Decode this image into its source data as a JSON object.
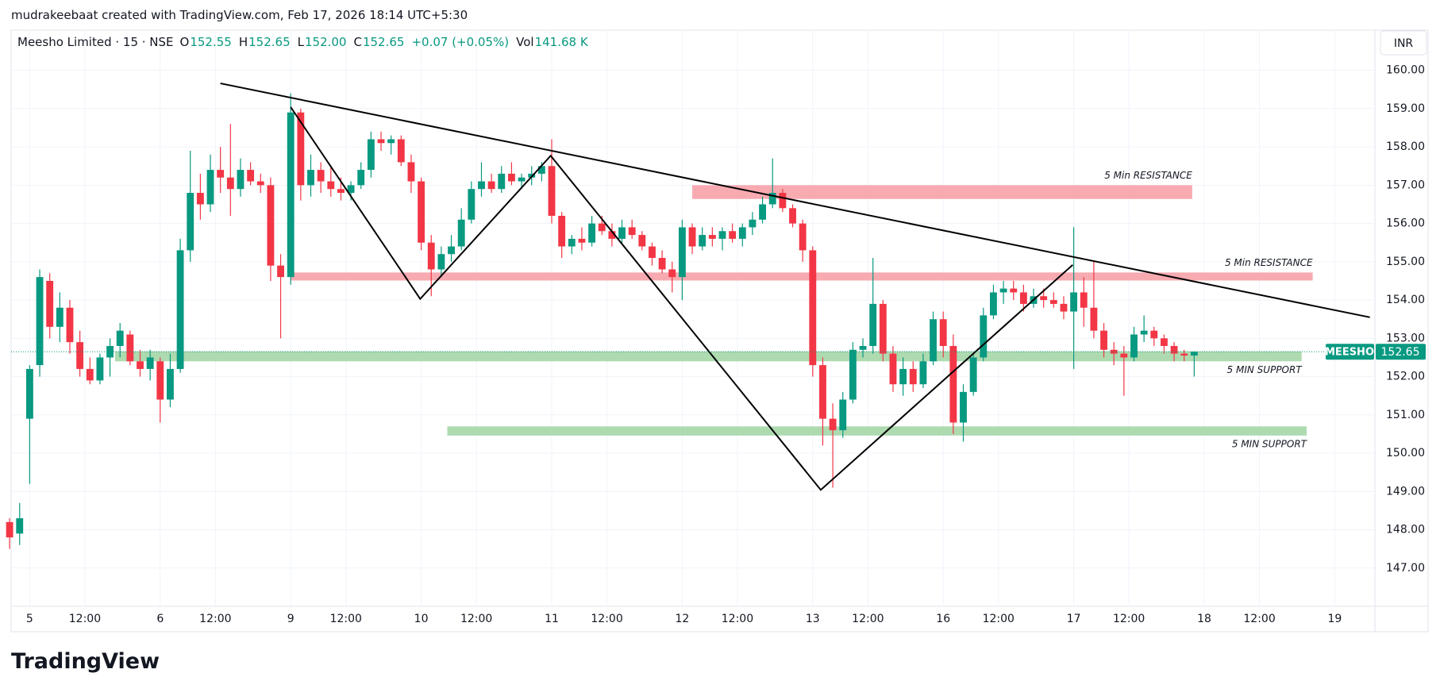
{
  "header": {
    "watermark": "mudrakeebaat created with TradingView.com, Feb 17, 2026 18:14 UTC+5:30",
    "legend": {
      "name": "Meesho Limited · 15 · NSE",
      "fields": [
        {
          "key": "O",
          "value": "152.55"
        },
        {
          "key": "H",
          "value": "152.65"
        },
        {
          "key": "L",
          "value": "152.00"
        },
        {
          "key": "C",
          "value": "152.65"
        }
      ],
      "change": "+0.07 (+0.05%)",
      "volume": {
        "key": "Vol",
        "value": "141.68 K"
      }
    },
    "currency": "INR",
    "logo": "TradingView"
  },
  "chart_data": {
    "type": "candlestick",
    "symbol": "MEESHO",
    "last_price": 152.65,
    "up_color": "#089981",
    "down_color": "#f23645",
    "grid": true,
    "xlim": [
      0.15,
      136
    ],
    "ylim": [
      146.0,
      161.05
    ],
    "yticks": [
      {
        "value": 147,
        "label": "147.00"
      },
      {
        "value": 148,
        "label": "148.00"
      },
      {
        "value": 149,
        "label": "149.00"
      },
      {
        "value": 150,
        "label": "150.00"
      },
      {
        "value": 151,
        "label": "151.00"
      },
      {
        "value": 152,
        "label": "152.00"
      },
      {
        "value": 153,
        "label": "153.00"
      },
      {
        "value": 154,
        "label": "154.00"
      },
      {
        "value": 155,
        "label": "155.00"
      },
      {
        "value": 156,
        "label": "156.00"
      },
      {
        "value": 157,
        "label": "157.00"
      },
      {
        "value": 158,
        "label": "158.00"
      },
      {
        "value": 159,
        "label": "159.00"
      },
      {
        "value": 160,
        "label": "160.00"
      }
    ],
    "xticks": [
      {
        "value": 2,
        "label": "5"
      },
      {
        "value": 7.5,
        "label": "12:00"
      },
      {
        "value": 15,
        "label": "6"
      },
      {
        "value": 20.5,
        "label": "12:00"
      },
      {
        "value": 28,
        "label": "9"
      },
      {
        "value": 33.5,
        "label": "12:00"
      },
      {
        "value": 41,
        "label": "10"
      },
      {
        "value": 46.5,
        "label": "12:00"
      },
      {
        "value": 54,
        "label": "11"
      },
      {
        "value": 59.5,
        "label": "12:00"
      },
      {
        "value": 67,
        "label": "12"
      },
      {
        "value": 72.5,
        "label": "12:00"
      },
      {
        "value": 80,
        "label": "13"
      },
      {
        "value": 85.5,
        "label": "12:00"
      },
      {
        "value": 93,
        "label": "16"
      },
      {
        "value": 98.5,
        "label": "12:00"
      },
      {
        "value": 106,
        "label": "17"
      },
      {
        "value": 111.5,
        "label": "12:00"
      },
      {
        "value": 119,
        "label": "18"
      },
      {
        "value": 124.5,
        "label": "12:00"
      },
      {
        "value": 132,
        "label": "19"
      }
    ],
    "ohlc": [
      [
        148.2,
        148.3,
        147.5,
        147.8
      ],
      [
        147.9,
        148.7,
        147.6,
        148.3
      ],
      [
        150.9,
        152.3,
        149.2,
        152.2
      ],
      [
        152.3,
        154.8,
        152.0,
        154.6
      ],
      [
        154.5,
        154.7,
        153.0,
        153.3
      ],
      [
        153.3,
        154.2,
        152.9,
        153.8
      ],
      [
        153.8,
        154.0,
        152.6,
        152.9
      ],
      [
        152.9,
        153.2,
        152.0,
        152.2
      ],
      [
        152.2,
        152.5,
        151.8,
        151.9
      ],
      [
        151.9,
        152.6,
        151.8,
        152.5
      ],
      [
        152.5,
        153.0,
        152.0,
        152.8
      ],
      [
        152.8,
        153.4,
        152.5,
        153.2
      ],
      [
        153.1,
        153.2,
        152.3,
        152.4
      ],
      [
        152.4,
        152.7,
        152.0,
        152.2
      ],
      [
        152.2,
        152.7,
        151.9,
        152.5
      ],
      [
        152.4,
        152.5,
        150.8,
        151.4
      ],
      [
        151.4,
        152.6,
        151.2,
        152.2
      ],
      [
        152.2,
        155.6,
        152.1,
        155.3
      ],
      [
        155.3,
        157.9,
        155.0,
        156.8
      ],
      [
        156.8,
        157.3,
        156.1,
        156.5
      ],
      [
        156.5,
        157.8,
        156.3,
        157.4
      ],
      [
        157.4,
        158.0,
        156.8,
        157.2
      ],
      [
        157.2,
        158.6,
        156.2,
        156.9
      ],
      [
        156.9,
        157.7,
        156.7,
        157.4
      ],
      [
        157.4,
        157.6,
        157.0,
        157.1
      ],
      [
        157.1,
        157.3,
        156.8,
        157.0
      ],
      [
        157.0,
        157.2,
        154.5,
        154.9
      ],
      [
        154.9,
        155.2,
        153.0,
        154.6
      ],
      [
        154.6,
        159.4,
        154.4,
        158.9
      ],
      [
        158.9,
        159.0,
        156.6,
        157.0
      ],
      [
        157.0,
        157.8,
        156.7,
        157.4
      ],
      [
        157.4,
        157.6,
        156.8,
        157.1
      ],
      [
        157.1,
        157.5,
        156.7,
        156.9
      ],
      [
        156.9,
        157.2,
        156.6,
        156.8
      ],
      [
        156.8,
        157.1,
        156.6,
        157.0
      ],
      [
        157.0,
        157.6,
        156.9,
        157.4
      ],
      [
        157.4,
        158.4,
        157.2,
        158.2
      ],
      [
        158.2,
        158.4,
        157.9,
        158.1
      ],
      [
        158.1,
        158.3,
        157.8,
        158.2
      ],
      [
        158.2,
        158.3,
        157.5,
        157.6
      ],
      [
        157.6,
        157.8,
        156.8,
        157.1
      ],
      [
        157.1,
        157.2,
        155.3,
        155.5
      ],
      [
        155.5,
        155.7,
        154.1,
        154.8
      ],
      [
        154.8,
        155.4,
        154.6,
        155.2
      ],
      [
        155.2,
        155.7,
        155.0,
        155.4
      ],
      [
        155.4,
        156.4,
        155.3,
        156.1
      ],
      [
        156.1,
        157.1,
        156.0,
        156.9
      ],
      [
        156.9,
        157.6,
        156.7,
        157.1
      ],
      [
        157.1,
        157.3,
        156.8,
        156.9
      ],
      [
        156.9,
        157.5,
        156.8,
        157.3
      ],
      [
        157.3,
        157.6,
        157.0,
        157.1
      ],
      [
        157.1,
        157.3,
        156.9,
        157.2
      ],
      [
        157.2,
        157.5,
        157.0,
        157.3
      ],
      [
        157.3,
        157.6,
        157.1,
        157.5
      ],
      [
        157.5,
        158.2,
        156.0,
        156.2
      ],
      [
        156.2,
        156.3,
        155.1,
        155.4
      ],
      [
        155.4,
        155.7,
        155.2,
        155.6
      ],
      [
        155.6,
        155.9,
        155.3,
        155.5
      ],
      [
        155.5,
        156.2,
        155.4,
        156.0
      ],
      [
        156.0,
        156.2,
        155.7,
        155.8
      ],
      [
        155.8,
        156.0,
        155.4,
        155.6
      ],
      [
        155.6,
        156.1,
        155.5,
        155.9
      ],
      [
        155.9,
        156.1,
        155.6,
        155.7
      ],
      [
        155.7,
        155.8,
        155.3,
        155.4
      ],
      [
        155.4,
        155.5,
        154.9,
        155.1
      ],
      [
        155.1,
        155.3,
        154.7,
        154.8
      ],
      [
        154.8,
        155.0,
        154.2,
        154.6
      ],
      [
        154.6,
        156.1,
        154.0,
        155.9
      ],
      [
        155.9,
        156.0,
        155.2,
        155.4
      ],
      [
        155.4,
        155.9,
        155.3,
        155.7
      ],
      [
        155.7,
        155.9,
        155.4,
        155.6
      ],
      [
        155.6,
        155.9,
        155.3,
        155.8
      ],
      [
        155.8,
        156.0,
        155.5,
        155.6
      ],
      [
        155.6,
        156.0,
        155.4,
        155.9
      ],
      [
        155.9,
        156.3,
        155.7,
        156.1
      ],
      [
        156.1,
        156.7,
        156.0,
        156.5
      ],
      [
        156.5,
        157.7,
        156.4,
        156.8
      ],
      [
        156.8,
        156.9,
        156.3,
        156.4
      ],
      [
        156.4,
        156.5,
        155.9,
        156.0
      ],
      [
        156.0,
        156.1,
        155.0,
        155.3
      ],
      [
        155.3,
        155.4,
        152.0,
        152.3
      ],
      [
        152.3,
        152.5,
        150.2,
        150.9
      ],
      [
        150.9,
        151.3,
        149.1,
        150.6
      ],
      [
        150.6,
        151.6,
        150.4,
        151.4
      ],
      [
        151.4,
        152.9,
        151.3,
        152.7
      ],
      [
        152.7,
        153.0,
        152.5,
        152.8
      ],
      [
        152.8,
        155.1,
        152.6,
        153.9
      ],
      [
        153.9,
        154.0,
        152.4,
        152.6
      ],
      [
        152.6,
        152.8,
        151.6,
        151.8
      ],
      [
        151.8,
        152.5,
        151.5,
        152.2
      ],
      [
        152.2,
        152.4,
        151.6,
        151.8
      ],
      [
        151.8,
        152.6,
        151.7,
        152.4
      ],
      [
        152.4,
        153.7,
        152.3,
        153.5
      ],
      [
        153.5,
        153.7,
        152.5,
        152.8
      ],
      [
        152.8,
        153.1,
        150.5,
        150.8
      ],
      [
        150.8,
        151.8,
        150.3,
        151.6
      ],
      [
        151.6,
        152.6,
        151.5,
        152.5
      ],
      [
        152.5,
        153.8,
        152.4,
        153.6
      ],
      [
        153.6,
        154.4,
        153.5,
        154.2
      ],
      [
        154.2,
        154.5,
        153.9,
        154.3
      ],
      [
        154.3,
        154.5,
        154.0,
        154.2
      ],
      [
        154.2,
        154.4,
        153.7,
        153.9
      ],
      [
        153.9,
        154.3,
        153.8,
        154.1
      ],
      [
        154.1,
        154.3,
        153.8,
        154.0
      ],
      [
        154.0,
        154.2,
        153.8,
        153.9
      ],
      [
        153.9,
        154.1,
        153.5,
        153.7
      ],
      [
        153.7,
        155.9,
        152.2,
        154.2
      ],
      [
        154.2,
        154.6,
        153.3,
        153.8
      ],
      [
        153.8,
        155.0,
        153.0,
        153.2
      ],
      [
        153.2,
        153.4,
        152.5,
        152.7
      ],
      [
        152.7,
        152.9,
        152.3,
        152.6
      ],
      [
        152.6,
        152.8,
        151.5,
        152.5
      ],
      [
        152.5,
        153.3,
        152.4,
        153.1
      ],
      [
        153.1,
        153.6,
        152.9,
        153.2
      ],
      [
        153.2,
        153.3,
        152.8,
        153.0
      ],
      [
        153.0,
        153.1,
        152.6,
        152.8
      ],
      [
        152.8,
        152.9,
        152.4,
        152.6
      ],
      [
        152.6,
        152.7,
        152.4,
        152.55
      ],
      [
        152.55,
        152.65,
        152.0,
        152.65
      ]
    ],
    "zones": [
      {
        "label": "5 Min RESISTANCE",
        "color": "#f7a1a9",
        "x": [
          68.0,
          117.8
        ],
        "y": [
          156.64,
          157.0
        ],
        "label_side": "above"
      },
      {
        "label": "5 Min RESISTANCE",
        "color": "#f7a1a9",
        "x": [
          27.95,
          129.8
        ],
        "y": [
          154.51,
          154.72
        ],
        "label_side": "above"
      },
      {
        "label": "5 MIN SUPPORT",
        "color": "#a5d6a7",
        "x": [
          10.5,
          128.7
        ],
        "y": [
          152.4,
          152.66
        ],
        "label_side": "below"
      },
      {
        "label": "5 MIN SUPPORT",
        "color": "#a5d6a7",
        "x": [
          43.6,
          129.2
        ],
        "y": [
          150.46,
          150.7
        ],
        "label_side": "below"
      }
    ],
    "lines": [
      {
        "color": "#000000",
        "points": [
          [
            21.0,
            159.66
          ],
          [
            135.5,
            153.55
          ]
        ]
      },
      {
        "color": "#000000",
        "points": [
          [
            28.0,
            159.04
          ],
          [
            40.9,
            154.03
          ],
          [
            53.9,
            157.77
          ],
          [
            80.8,
            149.04
          ],
          [
            105.9,
            154.92
          ]
        ]
      }
    ]
  }
}
